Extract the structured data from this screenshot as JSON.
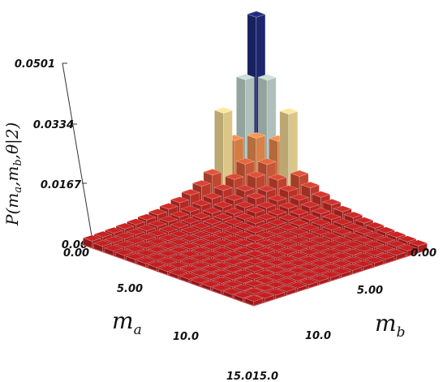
{
  "chart_data": {
    "type": "3d-bar",
    "zlabel": "P(m_a, m_b, θ | 2)",
    "xlabel": "m_a",
    "ylabel": "m_b",
    "z_ticks": [
      "0.00",
      "0.0167",
      "0.0334",
      "0.0501"
    ],
    "zlim": [
      0,
      0.0501
    ],
    "ma_ticks": [
      "0.00",
      "5.00",
      "10.0",
      "15.0"
    ],
    "mb_ticks": [
      "0.00",
      "5.00",
      "10.0",
      "15.0"
    ],
    "grid_range": [
      0,
      15
    ],
    "peak": {
      "m_a": 0,
      "m_b": 0,
      "value": 0.0501
    },
    "colormap": [
      "#1e2a78",
      "#a6c8dc",
      "#efe4a0",
      "#e8894a",
      "#c8342b",
      "#b5161b"
    ],
    "description_values": [
      {
        "m_a": 0,
        "m_b": 1,
        "value": 0.0334
      },
      {
        "m_a": 1,
        "m_b": 0,
        "value": 0.0334
      },
      {
        "m_a": 0,
        "m_b": 3,
        "value": 0.026
      },
      {
        "m_a": 3,
        "m_b": 0,
        "value": 0.026
      },
      {
        "m_a": 1,
        "m_b": 1,
        "value": 0.018
      }
    ]
  }
}
